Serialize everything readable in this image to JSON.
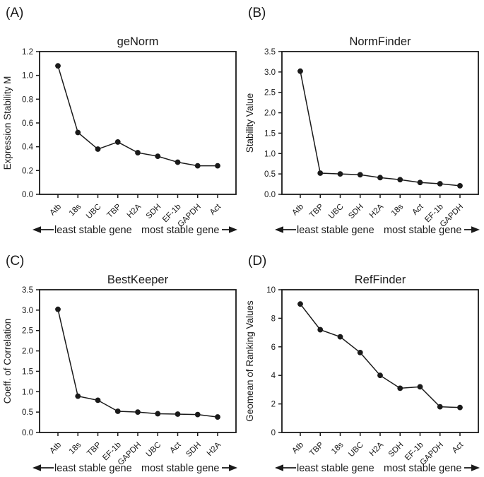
{
  "figure": {
    "background": "#ffffff",
    "ink_color": "#1a1a1a",
    "annotation_left": "least stable gene",
    "annotation_right": "most stable gene"
  },
  "chart_data": [
    {
      "type": "line",
      "panel_label": "(A)",
      "title": "geNorm",
      "ylabel": "Expression Stability M",
      "xlabel": "",
      "categories": [
        "Atb",
        "18s",
        "UBC",
        "TBP",
        "H2A",
        "SDH",
        "EF-1b",
        "GAPDH",
        "Act"
      ],
      "values": [
        1.08,
        0.52,
        0.38,
        0.44,
        0.35,
        0.32,
        0.27,
        0.24,
        0.24
      ],
      "ylim": [
        0,
        1.2
      ],
      "ytick_step": 0.2,
      "ytick_decimals": 1,
      "grid": false,
      "legend": false,
      "marker": "circle",
      "line_color": "#1a1a1a"
    },
    {
      "type": "line",
      "panel_label": "(B)",
      "title": "NormFinder",
      "ylabel": "Stability Value",
      "xlabel": "",
      "categories": [
        "Atb",
        "TBP",
        "UBC",
        "SDH",
        "H2A",
        "18s",
        "Act",
        "EF-1b",
        "GAPDH"
      ],
      "values": [
        3.02,
        0.52,
        0.5,
        0.48,
        0.41,
        0.36,
        0.29,
        0.26,
        0.21
      ],
      "ylim": [
        0,
        3.5
      ],
      "ytick_step": 0.5,
      "ytick_decimals": 1,
      "grid": false,
      "legend": false,
      "marker": "circle",
      "line_color": "#1a1a1a"
    },
    {
      "type": "line",
      "panel_label": "(C)",
      "title": "BestKeeper",
      "ylabel": "Coeff. of Correlation",
      "xlabel": "",
      "categories": [
        "Atb",
        "18s",
        "TBP",
        "EF-1b",
        "GAPDH",
        "UBC",
        "Act",
        "SDH",
        "H2A"
      ],
      "values": [
        3.02,
        0.89,
        0.79,
        0.52,
        0.5,
        0.46,
        0.45,
        0.44,
        0.38
      ],
      "ylim": [
        0,
        3.5
      ],
      "ytick_step": 0.5,
      "ytick_decimals": 1,
      "grid": false,
      "legend": false,
      "marker": "circle",
      "line_color": "#1a1a1a"
    },
    {
      "type": "line",
      "panel_label": "(D)",
      "title": "RefFinder",
      "ylabel": "Geomean of Ranking Values",
      "xlabel": "",
      "categories": [
        "Atb",
        "TBP",
        "18s",
        "UBC",
        "H2A",
        "SDH",
        "EF-1b",
        "GAPDH",
        "Act"
      ],
      "values": [
        9.0,
        7.2,
        6.7,
        5.6,
        4.0,
        3.1,
        3.2,
        1.8,
        1.75
      ],
      "ylim": [
        0,
        10
      ],
      "ytick_step": 2,
      "ytick_decimals": 0,
      "grid": false,
      "legend": false,
      "marker": "circle",
      "line_color": "#1a1a1a"
    }
  ]
}
